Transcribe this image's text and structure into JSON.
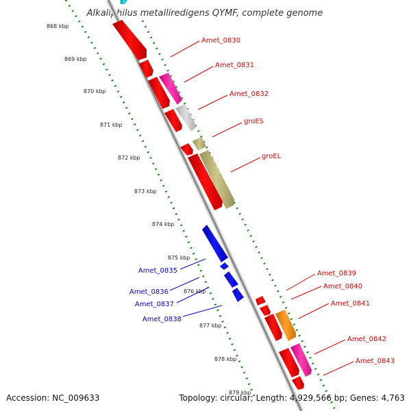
{
  "title": "Alkaliphilus metalliredigens QYMF, complete genome",
  "footer": {
    "accession": "Accession: NC_009633",
    "topology": "Topology: circular; Length: 4,929,566 bp; Genes: 4,763"
  },
  "ticks": [
    "868 kbp",
    "869 kbp",
    "870 kbp",
    "871 kbp",
    "872 kbp",
    "873 kbp",
    "874 kbp",
    "875 kbp",
    "876 kbp",
    "877 kbp",
    "878 kbp",
    "879 kbp"
  ],
  "forward_labels": [
    "Amet_0830",
    "Amet_0831",
    "Amet_0832",
    "groES",
    "groEL",
    "Amet_0839",
    "Amet_0840",
    "Amet_0841",
    "Amet_0842",
    "Amet_0843"
  ],
  "reverse_labels": [
    "Amet_0835",
    "Amet_0836",
    "Amet_0837",
    "Amet_0838"
  ],
  "colors": {
    "backbone": "#8a8a8a",
    "gc_dots": "#1a8a1a",
    "cds": "#ff0000",
    "pink": "#ff2aa0",
    "grey_gene": "#c4c4c4",
    "olive": "#b8b070",
    "orange": "#ff8800",
    "blue": "#0000ee",
    "cyan": "#00b8c8",
    "label_fwd": "#d40000",
    "label_rev": "#0000c8"
  }
}
